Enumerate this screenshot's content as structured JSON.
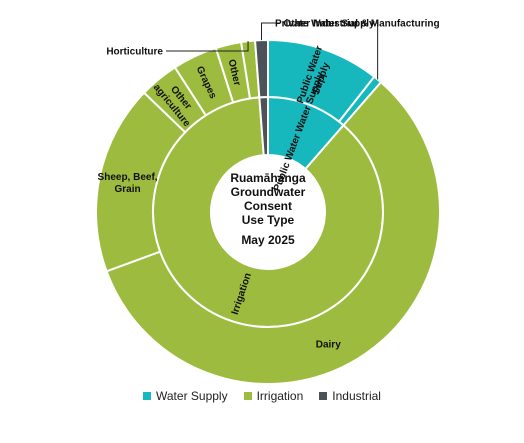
{
  "chart_data": {
    "type": "sunburst",
    "title": [
      "Ruamāhanga",
      "Groundwater",
      "Consent",
      "Use Type"
    ],
    "subtitle": "May 2025",
    "colors": {
      "Water Supply": "#17B8BD",
      "Irrigation": "#9DBB3F",
      "Industrial": "#4D5259"
    },
    "inner": [
      {
        "name": "Water Supply",
        "value": 11.4,
        "label": "Public Water Water Supply"
      },
      {
        "name": "Irrigation",
        "value": 87.4,
        "label": "Irrigation"
      },
      {
        "name": "Industrial",
        "value": 1.2,
        "label": ""
      }
    ],
    "outer": [
      {
        "parent": "Water Supply",
        "name": "Public Water Supply",
        "value": 10.6,
        "label": "Public Water Supply"
      },
      {
        "parent": "Water Supply",
        "name": "Private Water Supply",
        "value": 0.8,
        "label": "Private Water Supply"
      },
      {
        "parent": "Irrigation",
        "name": "Dairy",
        "value": 58.0,
        "label": "Dairy"
      },
      {
        "parent": "Irrigation",
        "name": "Sheep, Beef, Grain",
        "value": 17.8,
        "label": "Sheep, Beef, Grain"
      },
      {
        "parent": "Irrigation",
        "name": "Other agriculture",
        "value": 3.7,
        "label": "Other agriculture"
      },
      {
        "parent": "Irrigation",
        "name": "Grapes",
        "value": 4.2,
        "label": "Grapes"
      },
      {
        "parent": "Irrigation",
        "name": "Other",
        "value": 2.4,
        "label": "Other"
      },
      {
        "parent": "Irrigation",
        "name": "Horticulture",
        "value": 1.3,
        "label": "Horticulture"
      },
      {
        "parent": "Industrial",
        "name": "Other Industrial & Manufacturing",
        "value": 1.2,
        "label": "Other Industrial & Manufacturing"
      }
    ],
    "legend": [
      "Water Supply",
      "Irrigation",
      "Industrial"
    ],
    "legend_position": "bottom"
  }
}
